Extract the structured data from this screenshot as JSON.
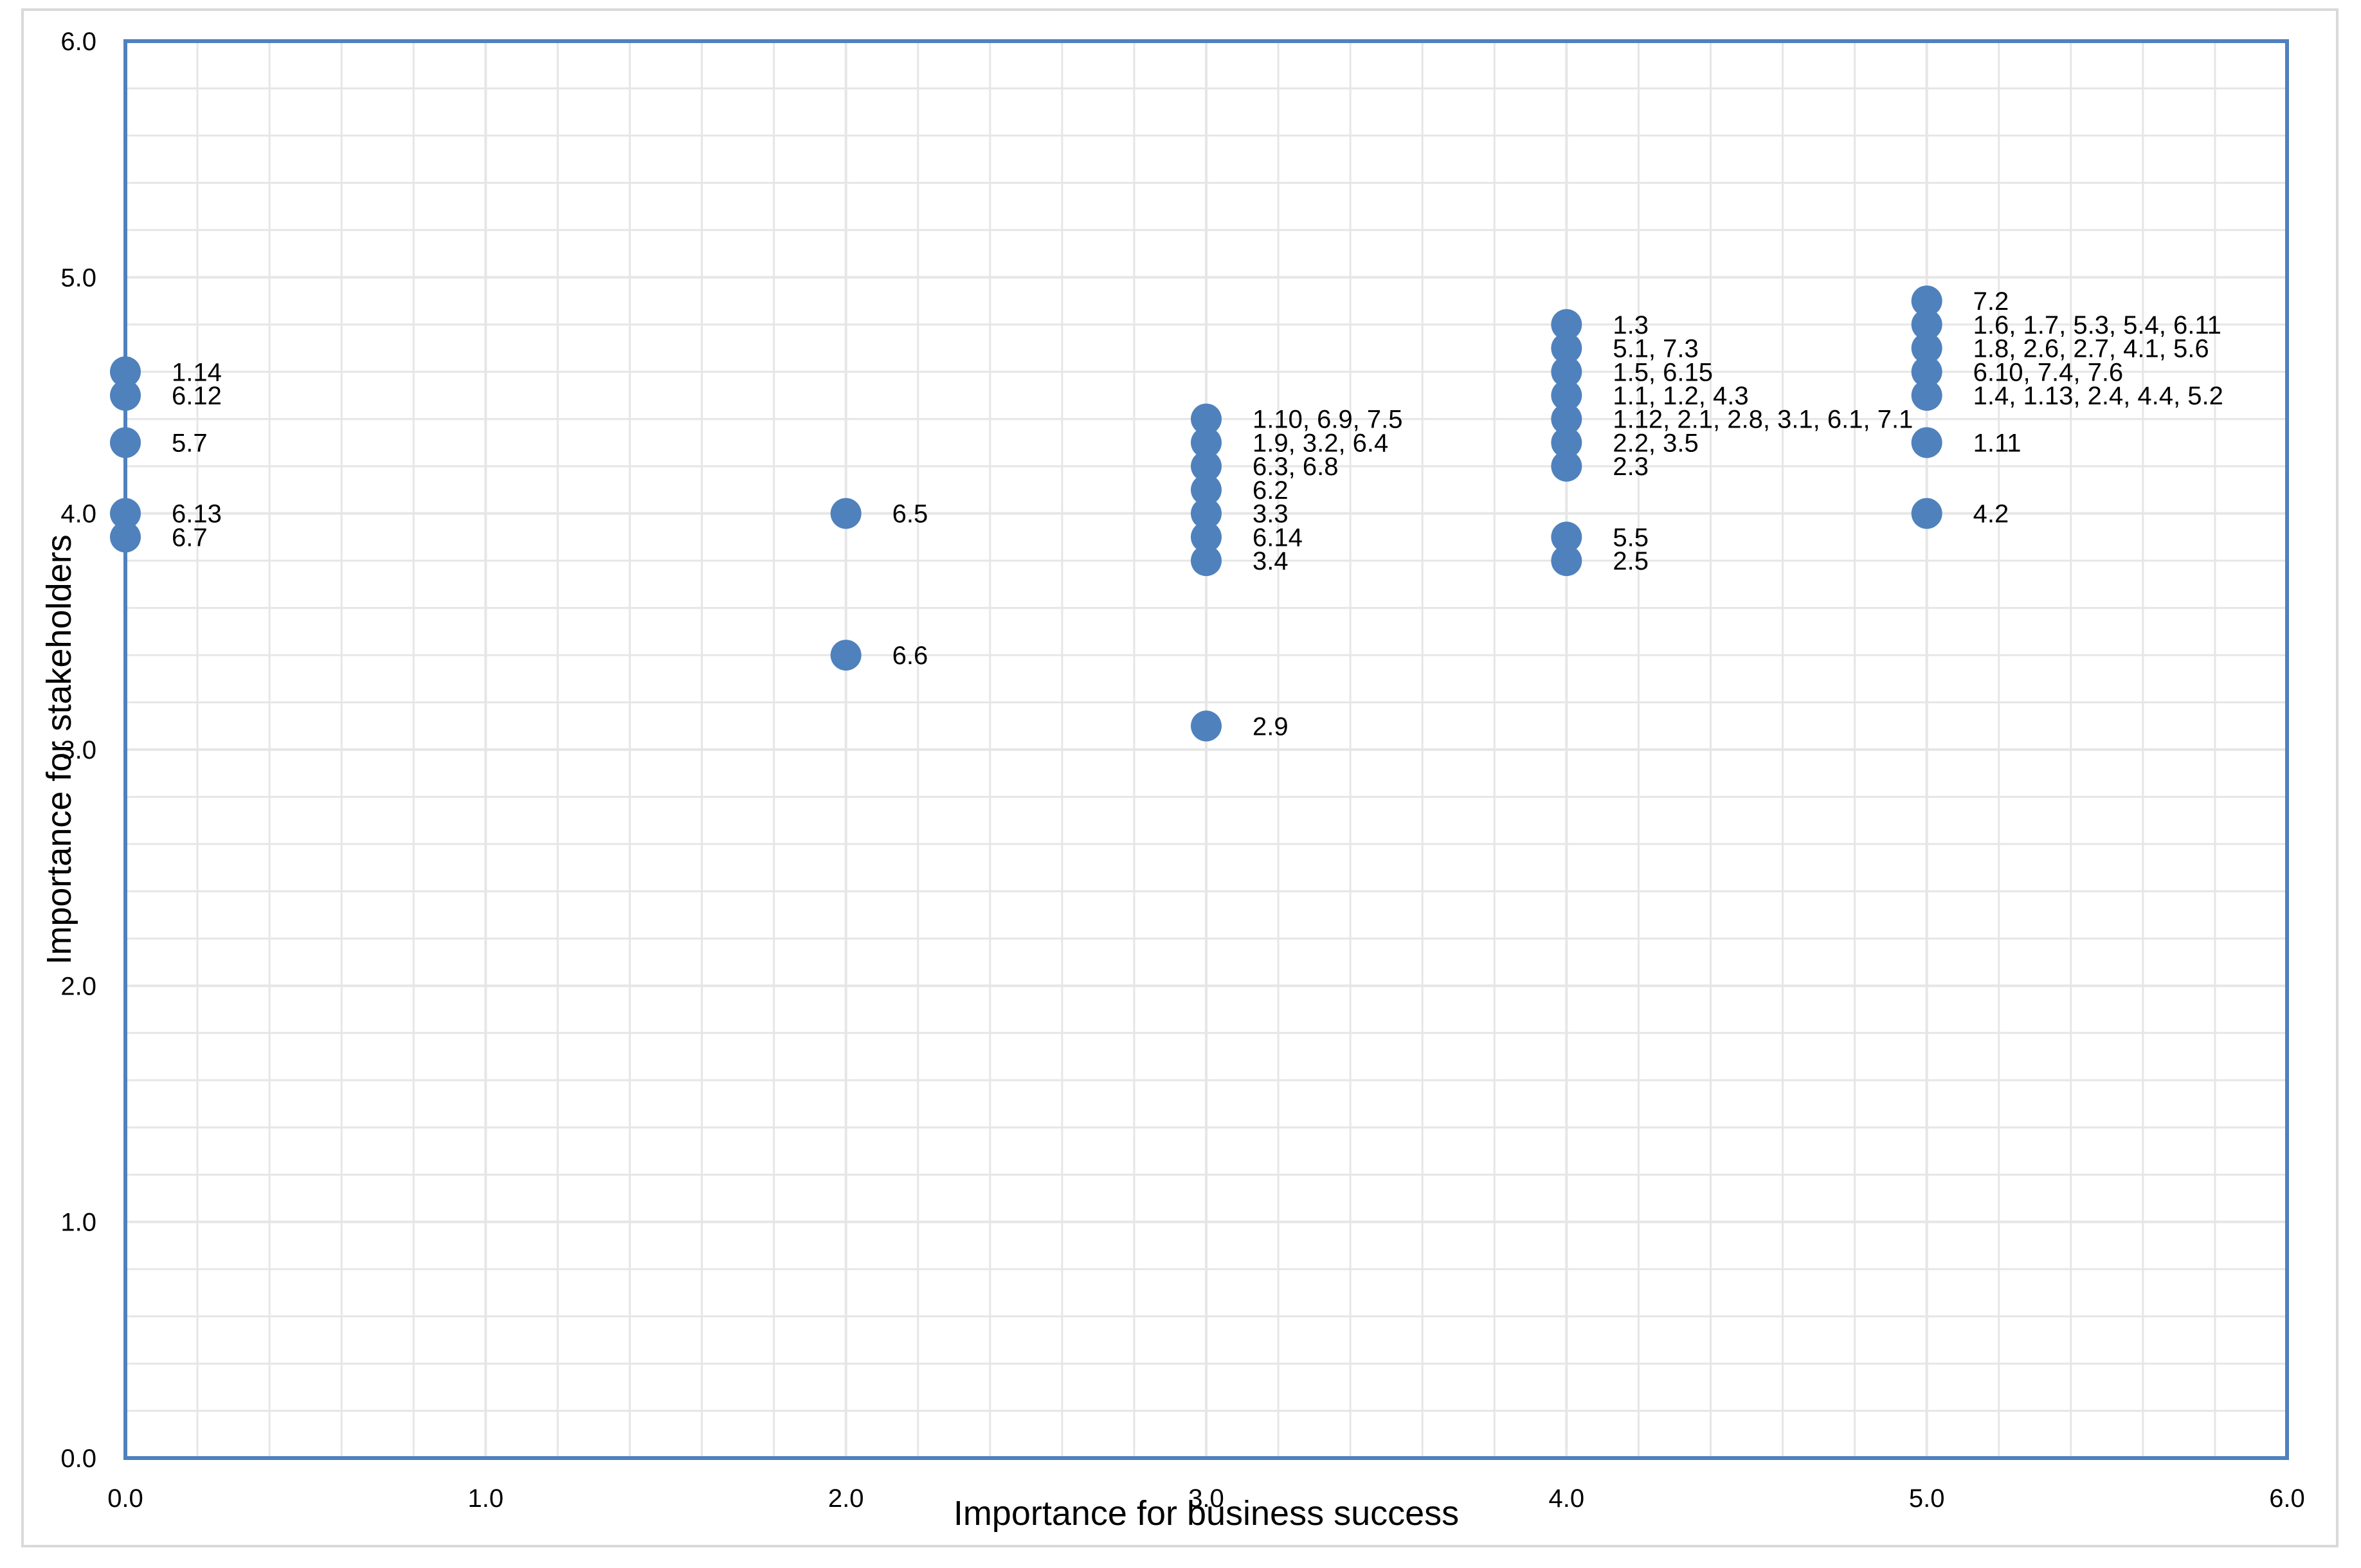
{
  "colors": {
    "marker": "#4f81bd",
    "plot_border": "#4f81bd",
    "grid": "#e6e6e6",
    "outer_border": "#d9d9d9"
  },
  "chart_data": {
    "type": "scatter",
    "title": "",
    "xlabel": "Importance for business success",
    "ylabel": "Importance for stakeholders",
    "xlim": [
      0,
      6
    ],
    "ylim": [
      0,
      6
    ],
    "xticks": [
      "0.0",
      "1.0",
      "2.0",
      "3.0",
      "4.0",
      "5.0",
      "6.0"
    ],
    "yticks": [
      "0.0",
      "1.0",
      "2.0",
      "3.0",
      "4.0",
      "5.0",
      "6.0"
    ],
    "grid": true,
    "legend": "none",
    "points": [
      {
        "x": 0,
        "y": 4.6,
        "label": "1.14"
      },
      {
        "x": 0,
        "y": 4.5,
        "label": "6.12"
      },
      {
        "x": 0,
        "y": 4.3,
        "label": "5.7"
      },
      {
        "x": 0,
        "y": 4.0,
        "label": "6.13"
      },
      {
        "x": 0,
        "y": 3.9,
        "label": "6.7"
      },
      {
        "x": 2,
        "y": 4.0,
        "label": "6.5"
      },
      {
        "x": 2,
        "y": 3.4,
        "label": "6.6"
      },
      {
        "x": 3,
        "y": 4.4,
        "label": "1.10, 6.9, 7.5"
      },
      {
        "x": 3,
        "y": 4.3,
        "label": "1.9, 3.2, 6.4"
      },
      {
        "x": 3,
        "y": 4.2,
        "label": "6.3, 6.8"
      },
      {
        "x": 3,
        "y": 4.1,
        "label": "6.2"
      },
      {
        "x": 3,
        "y": 4.0,
        "label": "3.3"
      },
      {
        "x": 3,
        "y": 3.9,
        "label": "6.14"
      },
      {
        "x": 3,
        "y": 3.8,
        "label": "3.4"
      },
      {
        "x": 3,
        "y": 3.1,
        "label": "2.9"
      },
      {
        "x": 4,
        "y": 4.8,
        "label": "1.3"
      },
      {
        "x": 4,
        "y": 4.7,
        "label": "5.1, 7.3"
      },
      {
        "x": 4,
        "y": 4.6,
        "label": "1.5, 6.15"
      },
      {
        "x": 4,
        "y": 4.5,
        "label": "1.1, 1.2, 4.3"
      },
      {
        "x": 4,
        "y": 4.4,
        "label": "1.12, 2.1, 2.8, 3.1, 6.1, 7.1"
      },
      {
        "x": 4,
        "y": 4.3,
        "label": "2.2, 3.5"
      },
      {
        "x": 4,
        "y": 4.2,
        "label": "2.3"
      },
      {
        "x": 4,
        "y": 3.9,
        "label": "5.5"
      },
      {
        "x": 4,
        "y": 3.8,
        "label": "2.5"
      },
      {
        "x": 5,
        "y": 4.9,
        "label": "7.2"
      },
      {
        "x": 5,
        "y": 4.8,
        "label": "1.6, 1.7, 5.3, 5.4, 6.11"
      },
      {
        "x": 5,
        "y": 4.7,
        "label": "1.8, 2.6, 2.7, 4.1, 5.6"
      },
      {
        "x": 5,
        "y": 4.6,
        "label": "6.10, 7.4, 7.6"
      },
      {
        "x": 5,
        "y": 4.5,
        "label": "1.4, 1.13, 2.4, 4.4, 5.2"
      },
      {
        "x": 5,
        "y": 4.3,
        "label": "1.11"
      },
      {
        "x": 5,
        "y": 4.0,
        "label": "4.2"
      }
    ]
  }
}
